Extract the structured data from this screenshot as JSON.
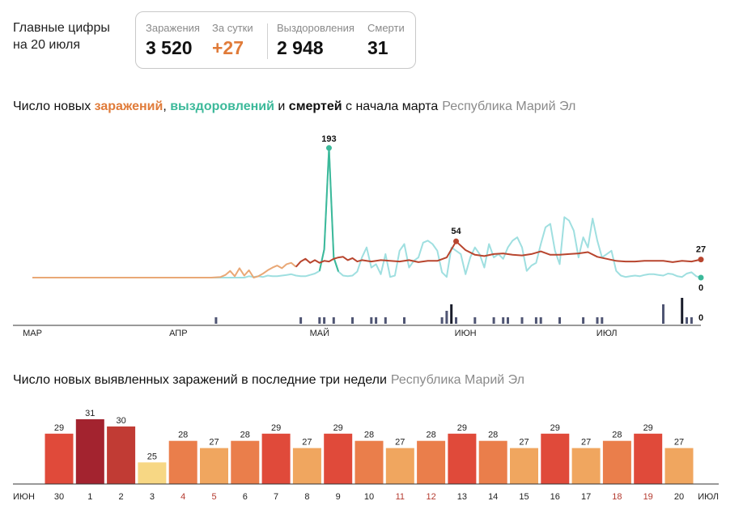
{
  "summary": {
    "headline_line1": "Главные цифры",
    "headline_line2": "на 20 июля",
    "stats": [
      {
        "label": "Заражения",
        "value": "3 520"
      },
      {
        "label": "За сутки",
        "value": "+27"
      },
      {
        "label": "Выздоровления",
        "value": "2 948"
      },
      {
        "label": "Смерти",
        "value": "31"
      }
    ]
  },
  "colors": {
    "infections": "#b8452e",
    "infections_light": "#e9a876",
    "recoveries": "#3cb99a",
    "recoveries_light": "#9fdfe0",
    "deaths": "#4f5573",
    "deaths_highlight": "#1a1d2b",
    "axis": "#333333",
    "muted": "#8a8a8a"
  },
  "chart_data": [
    {
      "type": "line",
      "title_parts": {
        "prefix": "Число новых ",
        "infections_word": "заражений",
        "comma": ", ",
        "recoveries_word": "выздоровлений",
        "and": " и ",
        "deaths_word": "смертей",
        "suffix": " с начала марта",
        "region": "Республика Марий Эл"
      },
      "x_ticks": [
        "МАР",
        "АПР",
        "МАЙ",
        "ИЮН",
        "ИЮЛ"
      ],
      "annotations": {
        "recoveries_peak": "193",
        "infections_peak": "54",
        "infections_last": "27",
        "recoveries_last": "0",
        "deaths_last": "0"
      },
      "ylim": [
        0,
        200
      ],
      "series": [
        {
          "name": "Заражения",
          "x": [
            0,
            38,
            40,
            41,
            42,
            43,
            44,
            45,
            46,
            47,
            48,
            49,
            50,
            51,
            52,
            53,
            54,
            55,
            56,
            57,
            58,
            59,
            60,
            61,
            62,
            63,
            64,
            65,
            66,
            67,
            68,
            69,
            70,
            72,
            74,
            76,
            78,
            80,
            82,
            84,
            86,
            88,
            90,
            92,
            94,
            96,
            98,
            100,
            102,
            104,
            106,
            108,
            110,
            112,
            114,
            116,
            118,
            120,
            122,
            124,
            126,
            128,
            130,
            132,
            134,
            136,
            138,
            140,
            142
          ],
          "values": [
            0,
            0,
            1,
            4,
            10,
            2,
            14,
            3,
            11,
            0,
            2,
            6,
            11,
            15,
            18,
            14,
            20,
            22,
            16,
            24,
            28,
            22,
            26,
            22,
            25,
            24,
            28,
            30,
            31,
            26,
            29,
            24,
            26,
            24,
            26,
            25,
            24,
            26,
            23,
            25,
            25,
            30,
            54,
            41,
            34,
            32,
            35,
            36,
            34,
            33,
            35,
            39,
            34,
            34,
            35,
            36,
            38,
            31,
            28,
            25,
            24,
            24,
            25,
            25,
            25,
            23,
            25,
            24,
            27
          ]
        },
        {
          "name": "Выздоровления",
          "x": [
            0,
            45,
            46,
            47,
            48,
            49,
            50,
            51,
            52,
            53,
            54,
            55,
            56,
            57,
            58,
            59,
            60,
            61,
            62,
            63,
            64,
            65,
            66,
            67,
            68,
            69,
            70,
            71,
            72,
            73,
            74,
            75,
            76,
            77,
            78,
            79,
            80,
            81,
            82,
            83,
            84,
            85,
            86,
            87,
            88,
            89,
            90,
            91,
            92,
            93,
            94,
            95,
            96,
            97,
            98,
            99,
            100,
            101,
            102,
            103,
            104,
            105,
            106,
            107,
            108,
            109,
            110,
            111,
            112,
            113,
            114,
            115,
            116,
            117,
            118,
            119,
            120,
            121,
            122,
            123,
            124,
            125,
            126,
            127,
            128,
            129,
            130,
            131,
            132,
            133,
            134,
            135,
            136,
            137,
            138,
            139,
            140,
            141,
            142
          ],
          "values": [
            0,
            0,
            2,
            1,
            2,
            1,
            3,
            2,
            2,
            3,
            4,
            5,
            3,
            2,
            2,
            4,
            6,
            10,
            42,
            193,
            30,
            9,
            3,
            2,
            3,
            9,
            30,
            45,
            15,
            20,
            5,
            35,
            1,
            3,
            40,
            50,
            15,
            25,
            30,
            52,
            55,
            50,
            40,
            8,
            1,
            45,
            40,
            35,
            5,
            30,
            45,
            35,
            15,
            50,
            30,
            35,
            28,
            45,
            55,
            60,
            45,
            10,
            18,
            22,
            50,
            75,
            80,
            40,
            20,
            90,
            85,
            70,
            30,
            60,
            45,
            88,
            55,
            30,
            35,
            40,
            10,
            3,
            1,
            2,
            3,
            2,
            4,
            5,
            5,
            4,
            3,
            6,
            5,
            2,
            1,
            6,
            8,
            2,
            0
          ]
        },
        {
          "name": "Смерти",
          "x": [
            0,
            142
          ],
          "values": [
            0,
            0
          ]
        }
      ],
      "deaths_bars": {
        "x": [
          39,
          57,
          61,
          62,
          64,
          68,
          72,
          73,
          75,
          79,
          87,
          88,
          89,
          90,
          94,
          98,
          100,
          101,
          104,
          107,
          108,
          112,
          117,
          120,
          121,
          134,
          138,
          139,
          140
        ],
        "values": [
          1,
          1,
          1,
          1,
          1,
          1,
          1,
          1,
          1,
          1,
          1,
          2,
          3,
          1,
          1,
          1,
          1,
          1,
          1,
          1,
          1,
          1,
          1,
          1,
          1,
          3,
          4,
          1,
          1
        ],
        "highlight": [
          false,
          false,
          false,
          false,
          false,
          false,
          false,
          false,
          false,
          false,
          false,
          false,
          true,
          false,
          false,
          false,
          false,
          false,
          false,
          false,
          false,
          false,
          false,
          false,
          false,
          false,
          true,
          false,
          false
        ]
      }
    },
    {
      "type": "bar",
      "title": "Число новых выявленных заражений в последние три недели",
      "region": "Республика Марий Эл",
      "month_start": "ИЮН",
      "month_end": "ИЮЛ",
      "categories": [
        "30",
        "1",
        "2",
        "3",
        "4",
        "5",
        "6",
        "7",
        "8",
        "9",
        "10",
        "11",
        "12",
        "13",
        "14",
        "15",
        "16",
        "17",
        "18",
        "19",
        "20"
      ],
      "values": [
        29,
        31,
        30,
        25,
        28,
        27,
        28,
        29,
        27,
        29,
        28,
        27,
        28,
        29,
        28,
        27,
        29,
        27,
        28,
        29,
        27
      ],
      "weekend": [
        false,
        false,
        false,
        false,
        true,
        true,
        false,
        false,
        false,
        false,
        false,
        true,
        true,
        false,
        false,
        false,
        false,
        false,
        true,
        true,
        false
      ],
      "ylim": [
        0,
        31
      ]
    }
  ]
}
